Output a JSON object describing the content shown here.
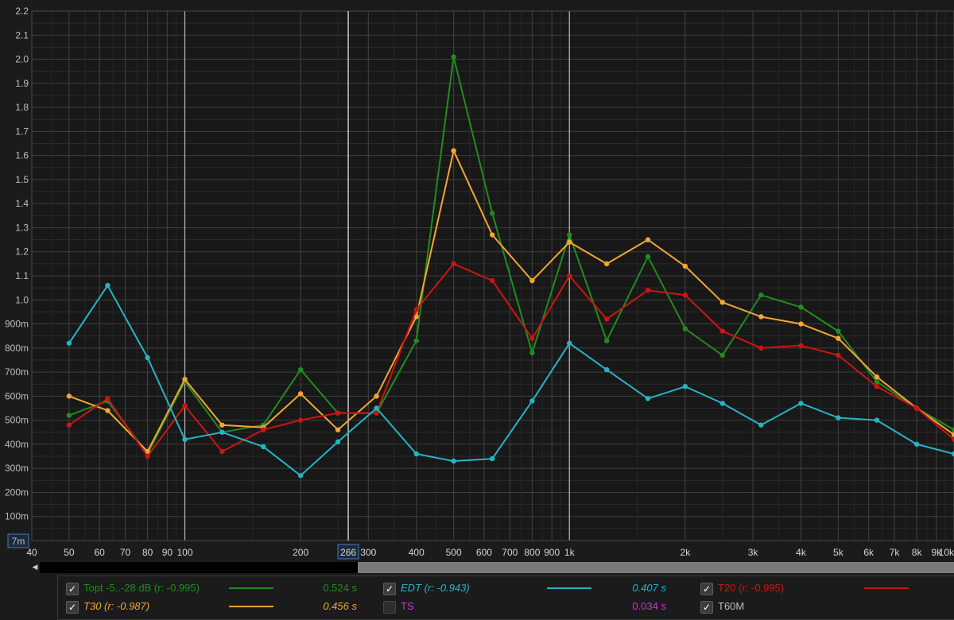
{
  "chart_data": {
    "type": "line",
    "xscale": "log",
    "xlim": [
      40,
      10000
    ],
    "ylim": [
      0,
      2.2
    ],
    "grid": true,
    "y_ticks": [
      {
        "v": 0.1,
        "label": "100m"
      },
      {
        "v": 0.2,
        "label": "200m"
      },
      {
        "v": 0.3,
        "label": "300m"
      },
      {
        "v": 0.4,
        "label": "400m"
      },
      {
        "v": 0.5,
        "label": "500m"
      },
      {
        "v": 0.6,
        "label": "600m"
      },
      {
        "v": 0.7,
        "label": "700m"
      },
      {
        "v": 0.8,
        "label": "800m"
      },
      {
        "v": 0.9,
        "label": "900m"
      },
      {
        "v": 1.0,
        "label": "1.0"
      },
      {
        "v": 1.1,
        "label": "1.1"
      },
      {
        "v": 1.2,
        "label": "1.2"
      },
      {
        "v": 1.3,
        "label": "1.3"
      },
      {
        "v": 1.4,
        "label": "1.4"
      },
      {
        "v": 1.5,
        "label": "1.5"
      },
      {
        "v": 1.6,
        "label": "1.6"
      },
      {
        "v": 1.7,
        "label": "1.7"
      },
      {
        "v": 1.8,
        "label": "1.8"
      },
      {
        "v": 1.9,
        "label": "1.9"
      },
      {
        "v": 2.0,
        "label": "2.0"
      },
      {
        "v": 2.1,
        "label": "2.1"
      },
      {
        "v": 2.2,
        "label": "2.2"
      }
    ],
    "y_bottom_label": "7m",
    "x_ticks": [
      {
        "v": 40,
        "label": "40"
      },
      {
        "v": 50,
        "label": "50"
      },
      {
        "v": 60,
        "label": "60"
      },
      {
        "v": 70,
        "label": "70"
      },
      {
        "v": 80,
        "label": "80"
      },
      {
        "v": 90,
        "label": "90"
      },
      {
        "v": 100,
        "label": "100"
      },
      {
        "v": 200,
        "label": "200"
      },
      {
        "v": 300,
        "label": "300"
      },
      {
        "v": 400,
        "label": "400"
      },
      {
        "v": 500,
        "label": "500"
      },
      {
        "v": 600,
        "label": "600"
      },
      {
        "v": 700,
        "label": "700"
      },
      {
        "v": 800,
        "label": "800"
      },
      {
        "v": 900,
        "label": "900"
      },
      {
        "v": 1000,
        "label": "1k"
      },
      {
        "v": 2000,
        "label": "2k"
      },
      {
        "v": 3000,
        "label": "3k"
      },
      {
        "v": 4000,
        "label": "4k"
      },
      {
        "v": 5000,
        "label": "5k"
      },
      {
        "v": 6000,
        "label": "6k"
      },
      {
        "v": 7000,
        "label": "7k"
      },
      {
        "v": 8000,
        "label": "8k"
      },
      {
        "v": 9000,
        "label": "9k"
      },
      {
        "v": 10000,
        "label": "10k"
      }
    ],
    "x_major_lines": [
      100,
      1000
    ],
    "cursor": {
      "x": 266,
      "label": "266"
    },
    "x": [
      50,
      63,
      80,
      100,
      125,
      160,
      200,
      250,
      315,
      400,
      500,
      630,
      800,
      1000,
      1250,
      1600,
      2000,
      2500,
      3150,
      4000,
      5000,
      6300,
      8000,
      10000
    ],
    "series": [
      {
        "name": "Topt -5..-28 dB (r: -0.995)",
        "color": "#1f8c1f",
        "values": [
          0.52,
          0.58,
          0.36,
          0.66,
          0.45,
          0.48,
          0.71,
          0.53,
          0.53,
          0.83,
          2.01,
          1.36,
          0.78,
          1.27,
          0.83,
          1.18,
          0.88,
          0.77,
          1.02,
          0.97,
          0.87,
          0.66,
          0.55,
          0.46
        ]
      },
      {
        "name": "T30 (r: -0.987)",
        "color": "#f2a535",
        "values": [
          0.6,
          0.54,
          0.37,
          0.67,
          0.48,
          0.47,
          0.61,
          0.46,
          0.6,
          0.93,
          1.62,
          1.27,
          1.08,
          1.24,
          1.15,
          1.25,
          1.14,
          0.99,
          0.93,
          0.9,
          0.84,
          0.68,
          0.55,
          0.44
        ]
      },
      {
        "name": "T20 (r: -0.995)",
        "color": "#cc1414",
        "values": [
          0.48,
          0.59,
          0.35,
          0.56,
          0.37,
          0.46,
          0.5,
          0.53,
          0.53,
          0.96,
          1.15,
          1.08,
          0.84,
          1.1,
          0.92,
          1.04,
          1.02,
          0.87,
          0.8,
          0.81,
          0.77,
          0.64,
          0.55,
          0.42
        ]
      },
      {
        "name": "EDT (r: -0.943)",
        "color": "#27b3c4",
        "values": [
          0.82,
          1.06,
          0.76,
          0.42,
          0.45,
          0.39,
          0.27,
          0.41,
          0.55,
          0.36,
          0.33,
          0.34,
          0.58,
          0.82,
          0.71,
          0.59,
          0.64,
          0.57,
          0.48,
          0.57,
          0.51,
          0.5,
          0.4,
          0.36
        ]
      }
    ]
  },
  "legend": {
    "colors": {
      "topt": "#1f8c1f",
      "edt": "#27b3c4",
      "t20": "#cc1414",
      "t30": "#f2a535",
      "ts": "#cc33cc",
      "t60m": "#bdbdbd"
    },
    "topt": {
      "label": "Topt -5..-28 dB (r: -0.995)",
      "value": "0.524 s",
      "checked": true
    },
    "edt": {
      "label": "EDT (r: -0.943)",
      "value": "0.407 s",
      "checked": true
    },
    "t20": {
      "label": "T20 (r: -0.995)",
      "value": "",
      "checked": true
    },
    "t30": {
      "label": "T30 (r: -0.987)",
      "value": "0.456 s",
      "checked": true
    },
    "ts": {
      "label": "TS",
      "value": "0.034 s",
      "checked": false
    },
    "t60m": {
      "label": "T60M",
      "value": "",
      "checked": true
    },
    "checkmark": "✓"
  },
  "scrollbar": {
    "left_arrow": "◀"
  }
}
